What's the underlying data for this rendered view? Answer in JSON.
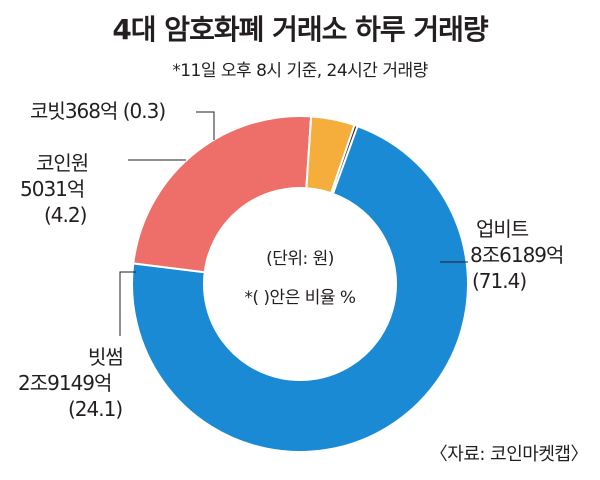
{
  "title": "4대 암호화폐 거래소 하루 거래량",
  "subtitle": "*11일 오후 8시 기준, 24시간 거래량",
  "center": {
    "unit": "(단위: 원)",
    "note": "*( )안은 비율 %"
  },
  "source": "〈자료: 코인마켓캡〉",
  "colors": {
    "upbit": "#1a8ad4",
    "bithumb": "#ee6f69",
    "coinone": "#f5ad3c",
    "korbit": "#231f20"
  },
  "chart_data": {
    "type": "donut",
    "start_angle_deg": 20,
    "slices": [
      {
        "name": "업비트",
        "volume": "8조6189억",
        "percent_label": "(71.4)",
        "value": 71.4,
        "color": "#1a8ad4"
      },
      {
        "name": "빗썸",
        "volume": "2조9149억",
        "percent_label": "(24.1)",
        "value": 24.1,
        "color": "#ee6f69"
      },
      {
        "name": "코인원",
        "volume": "5031억",
        "percent_label": "(4.2)",
        "value": 4.2,
        "color": "#f5ad3c"
      },
      {
        "name": "코빗",
        "volume": "368억",
        "percent_label": "(0.3)",
        "value": 0.3,
        "color": "#231f20"
      }
    ]
  }
}
